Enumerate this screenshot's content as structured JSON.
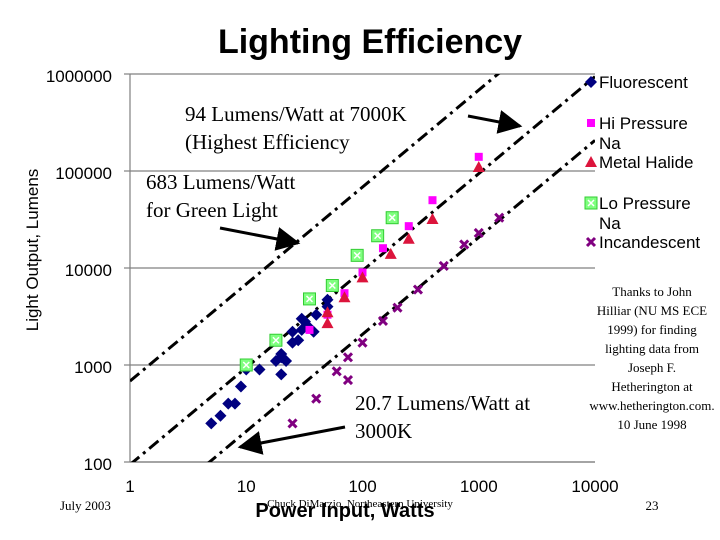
{
  "slide": {
    "date": "July 2003",
    "footer": "Chuck DiMarzio, Northeastern University",
    "page_number": "23",
    "credit": "Thanks to John Hilliar (NU MS ECE 1999) for finding lighting data from Joseph F. Hetherington at www.hetherington.com. 10 June 1998"
  },
  "chart_data": {
    "type": "scatter",
    "title": "Lighting Efficiency",
    "xlabel": "Power Input, Watts",
    "ylabel": "Light Output, Lumens",
    "xscale": "log",
    "yscale": "log",
    "xlim": [
      1,
      10000
    ],
    "ylim": [
      100,
      1000000
    ],
    "x_ticks": [
      1,
      10,
      100,
      1000,
      10000
    ],
    "x_tick_labels": [
      "1",
      "10",
      "100",
      "1000",
      "10000"
    ],
    "y_ticks": [
      100,
      1000,
      10000,
      100000,
      1000000
    ],
    "y_tick_labels": [
      "100",
      "1000",
      "10000",
      "100000",
      "1000000"
    ],
    "grid": "horizontal",
    "legend_position": "right",
    "series": [
      {
        "name": "Fluorescent",
        "marker": "diamond",
        "color": "#000080",
        "points": [
          [
            5,
            250
          ],
          [
            6,
            300
          ],
          [
            7,
            400
          ],
          [
            8,
            400
          ],
          [
            9,
            600
          ],
          [
            10,
            900
          ],
          [
            13,
            900
          ],
          [
            18,
            1100
          ],
          [
            20,
            1300
          ],
          [
            22,
            1100
          ],
          [
            20,
            800
          ],
          [
            20,
            1200
          ],
          [
            25,
            1700
          ],
          [
            25,
            2200
          ],
          [
            28,
            1800
          ],
          [
            30,
            2300
          ],
          [
            30,
            3000
          ],
          [
            32,
            2800
          ],
          [
            34,
            2500
          ],
          [
            38,
            2200
          ],
          [
            40,
            3300
          ],
          [
            50,
            4000
          ],
          [
            50,
            4700
          ]
        ]
      },
      {
        "name": "Hi Pressure Na",
        "marker": "square",
        "color": "#ff00ff",
        "points": [
          [
            35,
            2300
          ],
          [
            50,
            3300
          ],
          [
            70,
            5500
          ],
          [
            100,
            9000
          ],
          [
            150,
            16000
          ],
          [
            250,
            27000
          ],
          [
            400,
            50000
          ],
          [
            1000,
            140000
          ]
        ]
      },
      {
        "name": "Metal Halide",
        "marker": "triangle",
        "color": "#dc143c",
        "points": [
          [
            50,
            2700
          ],
          [
            50,
            3500
          ],
          [
            70,
            5000
          ],
          [
            100,
            8000
          ],
          [
            175,
            14000
          ],
          [
            250,
            20000
          ],
          [
            400,
            32000
          ],
          [
            1000,
            110000
          ]
        ]
      },
      {
        "name": "Lo Pressure Na",
        "marker": "square-x",
        "color": "#7fff7f",
        "points": [
          [
            10,
            1000
          ],
          [
            18,
            1800
          ],
          [
            35,
            4800
          ],
          [
            55,
            6600
          ],
          [
            90,
            13500
          ],
          [
            135,
            21500
          ],
          [
            180,
            33000
          ]
        ]
      },
      {
        "name": "Incandescent",
        "marker": "x",
        "color": "#800080",
        "points": [
          [
            25,
            250
          ],
          [
            40,
            450
          ],
          [
            60,
            860
          ],
          [
            75,
            700
          ],
          [
            75,
            1200
          ],
          [
            100,
            1700
          ],
          [
            150,
            2850
          ],
          [
            200,
            3900
          ],
          [
            300,
            6000
          ],
          [
            500,
            10500
          ],
          [
            750,
            17500
          ],
          [
            1000,
            23000
          ],
          [
            1500,
            33000
          ]
        ]
      }
    ],
    "reference_lines": [
      {
        "name": "94 Lumens/Watt at 7000K",
        "lumens_per_watt": 94,
        "style": "dash-dot"
      },
      {
        "name": "683 Lumens/Watt for Green Light",
        "lumens_per_watt": 683,
        "style": "dash-dot"
      },
      {
        "name": "20.7 Lumens/Watt at 3000K",
        "lumens_per_watt": 20.7,
        "style": "dash-dot"
      }
    ],
    "annotations": [
      {
        "text_lines": [
          "94 Lumens/Watt at 7000K",
          "(Highest Efficiency"
        ],
        "points_to": "94 Lumens/Watt line"
      },
      {
        "text_lines": [
          "683 Lumens/Watt",
          "for Green Light"
        ],
        "points_to": "683 Lumens/Watt line"
      },
      {
        "text_lines": [
          "20.7 Lumens/Watt at",
          "3000K"
        ],
        "points_to": "20.7 Lumens/Watt line"
      }
    ]
  }
}
